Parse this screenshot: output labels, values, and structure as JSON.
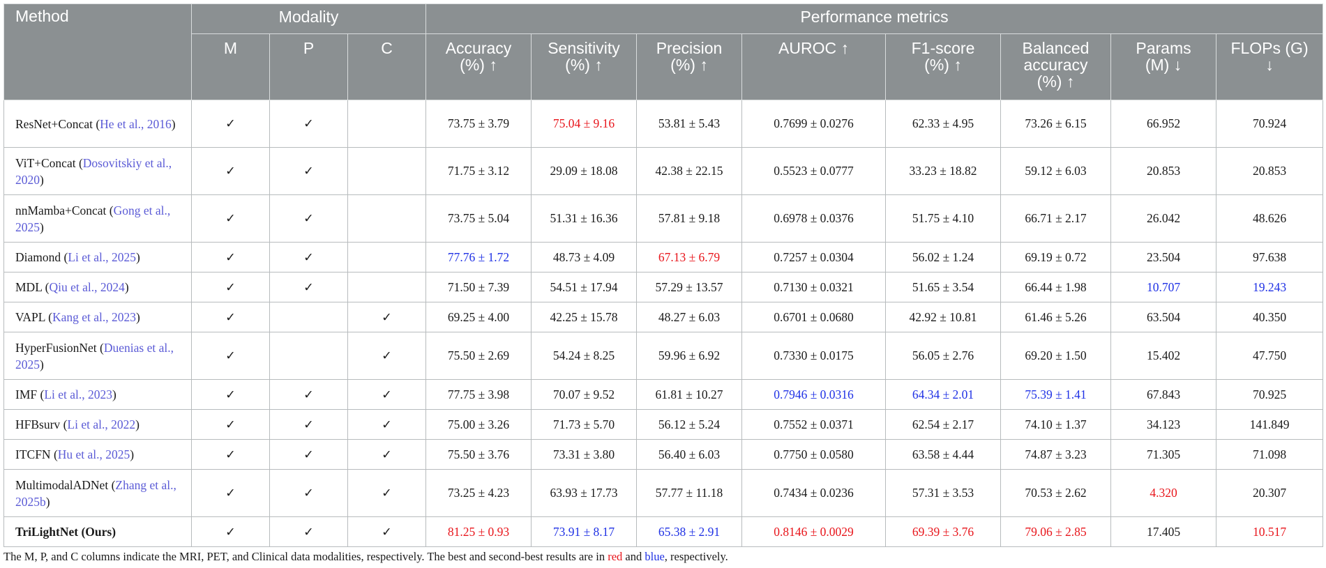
{
  "header": {
    "method": "Method",
    "modality": "Modality",
    "performance": "Performance metrics",
    "columns": {
      "m": "M",
      "p": "P",
      "c": "C",
      "accuracy": [
        "Accuracy",
        "(%) ↑"
      ],
      "sensitivity": [
        "Sensitivity",
        "(%) ↑"
      ],
      "precision": [
        "Precision",
        "(%) ↑"
      ],
      "auroc": [
        "AUROC ↑"
      ],
      "f1": [
        "F1-score",
        "(%) ↑"
      ],
      "balanced": [
        "Balanced",
        "accuracy",
        "(%) ↑"
      ],
      "params": [
        "Params",
        "(M) ↓"
      ],
      "flops": [
        "FLOPs (G)",
        "↓"
      ]
    }
  },
  "rows": [
    {
      "name": "ResNet+Concat",
      "cite": "He et al., 2016",
      "m": "✓",
      "p": "✓",
      "c": "",
      "accuracy": "73.75 ± 3.79",
      "sensitivity": "75.04 ± 9.16",
      "precision": "53.81 ± 5.43",
      "auroc": "0.7699 ± 0.0276",
      "f1": "62.33 ± 4.95",
      "balanced": "73.26 ± 6.15",
      "params": "66.952",
      "flops": "70.924"
    },
    {
      "name": "ViT+Concat",
      "cite": "Dosovitskiy et al., 2020",
      "m": "✓",
      "p": "✓",
      "c": "",
      "accuracy": "71.75 ± 3.12",
      "sensitivity": "29.09 ± 18.08",
      "precision": "42.38 ± 22.15",
      "auroc": "0.5523 ± 0.0777",
      "f1": "33.23 ± 18.82",
      "balanced": "59.12 ± 6.03",
      "params": "20.853",
      "flops": "20.853"
    },
    {
      "name": "nnMamba+Concat",
      "cite": "Gong et al., 2025",
      "m": "✓",
      "p": "✓",
      "c": "",
      "accuracy": "73.75 ± 5.04",
      "sensitivity": "51.31 ± 16.36",
      "precision": "57.81 ± 9.18",
      "auroc": "0.6978 ± 0.0376",
      "f1": "51.75 ± 4.10",
      "balanced": "66.71 ± 2.17",
      "params": "26.042",
      "flops": "48.626"
    },
    {
      "name": "Diamond",
      "cite": "Li et al., 2025",
      "m": "✓",
      "p": "✓",
      "c": "",
      "accuracy": "77.76 ± 1.72",
      "sensitivity": "48.73 ± 4.09",
      "precision": "67.13 ± 6.79",
      "auroc": "0.7257 ± 0.0304",
      "f1": "56.02 ± 1.24",
      "balanced": "69.19 ± 0.72",
      "params": "23.504",
      "flops": "97.638"
    },
    {
      "name": "MDL",
      "cite": "Qiu et al., 2024",
      "m": "✓",
      "p": "✓",
      "c": "",
      "accuracy": "71.50 ± 7.39",
      "sensitivity": "54.51 ± 17.94",
      "precision": "57.29 ± 13.57",
      "auroc": "0.7130 ± 0.0321",
      "f1": "51.65 ± 3.54",
      "balanced": "66.44 ± 1.98",
      "params": "10.707",
      "flops": "19.243"
    },
    {
      "name": "VAPL",
      "cite": "Kang et al., 2023",
      "m": "✓",
      "p": "",
      "c": "✓",
      "accuracy": "69.25 ± 4.00",
      "sensitivity": "42.25 ± 15.78",
      "precision": "48.27 ± 6.03",
      "auroc": "0.6701 ± 0.0680",
      "f1": "42.92 ± 10.81",
      "balanced": "61.46 ± 5.26",
      "params": "63.504",
      "flops": "40.350"
    },
    {
      "name": "HyperFusionNet",
      "cite": "Duenias et al., 2025",
      "m": "✓",
      "p": "",
      "c": "✓",
      "accuracy": "75.50 ± 2.69",
      "sensitivity": "54.24 ± 8.25",
      "precision": "59.96 ± 6.92",
      "auroc": "0.7330 ± 0.0175",
      "f1": "56.05 ± 2.76",
      "balanced": "69.20 ± 1.50",
      "params": "15.402",
      "flops": "47.750"
    },
    {
      "name": "IMF",
      "cite": "Li et al., 2023",
      "m": "✓",
      "p": "✓",
      "c": "✓",
      "accuracy": "77.75 ± 3.98",
      "sensitivity": "70.07 ± 9.52",
      "precision": "61.81 ± 10.27",
      "auroc": "0.7946 ± 0.0316",
      "f1": "64.34 ± 2.01",
      "balanced": "75.39 ± 1.41",
      "params": "67.843",
      "flops": "70.925"
    },
    {
      "name": "HFBsurv",
      "cite": "Li et al., 2022",
      "m": "✓",
      "p": "✓",
      "c": "✓",
      "accuracy": "75.00 ± 3.26",
      "sensitivity": "71.73 ± 5.70",
      "precision": "56.12 ± 5.24",
      "auroc": "0.7552 ± 0.0371",
      "f1": "62.54 ± 2.17",
      "balanced": "74.10 ± 1.37",
      "params": "34.123",
      "flops": "141.849"
    },
    {
      "name": "ITCFN",
      "cite": "Hu et al., 2025",
      "m": "✓",
      "p": "✓",
      "c": "✓",
      "accuracy": "75.50 ± 3.76",
      "sensitivity": "73.31 ± 3.80",
      "precision": "56.40 ± 6.03",
      "auroc": "0.7750 ± 0.0580",
      "f1": "63.58 ± 4.44",
      "balanced": "74.87 ± 3.23",
      "params": "71.305",
      "flops": "71.098"
    },
    {
      "name": "MultimodalADNet",
      "cite": "Zhang et al., 2025b",
      "m": "✓",
      "p": "✓",
      "c": "✓",
      "accuracy": "73.25 ± 4.23",
      "sensitivity": "63.93 ± 17.73",
      "precision": "57.77 ± 11.18",
      "auroc": "0.7434 ± 0.0236",
      "f1": "57.31 ± 3.53",
      "balanced": "70.53 ± 2.62",
      "params": "4.320",
      "flops": "20.307"
    },
    {
      "name": "TriLightNet (Ours)",
      "cite": "",
      "m": "✓",
      "p": "✓",
      "c": "✓",
      "accuracy": "81.25 ± 0.93",
      "sensitivity": "73.91 ± 8.17",
      "precision": "65.38 ± 2.91",
      "auroc": "0.8146 ± 0.0029",
      "f1": "69.39 ± 3.76",
      "balanced": "79.06 ± 2.85",
      "params": "17.405",
      "flops": "10.517"
    }
  ],
  "highlights": {
    "best_color": "#e8151b",
    "second_color": "#1f31e5",
    "best": [
      [
        0,
        "sensitivity"
      ],
      [
        3,
        "precision"
      ],
      [
        10,
        "params"
      ],
      [
        11,
        "accuracy"
      ],
      [
        11,
        "auroc"
      ],
      [
        11,
        "f1"
      ],
      [
        11,
        "balanced"
      ],
      [
        11,
        "flops"
      ]
    ],
    "second": [
      [
        3,
        "accuracy"
      ],
      [
        4,
        "params"
      ],
      [
        4,
        "flops"
      ],
      [
        7,
        "auroc"
      ],
      [
        7,
        "f1"
      ],
      [
        7,
        "balanced"
      ],
      [
        11,
        "sensitivity"
      ],
      [
        11,
        "precision"
      ]
    ]
  },
  "footnote": {
    "before": "The M, P, and C columns indicate the MRI, PET, and Clinical data modalities, respectively. The best and second-best results are in ",
    "red": "red",
    "mid": " and ",
    "blue": "blue",
    "after": ", respectively."
  }
}
